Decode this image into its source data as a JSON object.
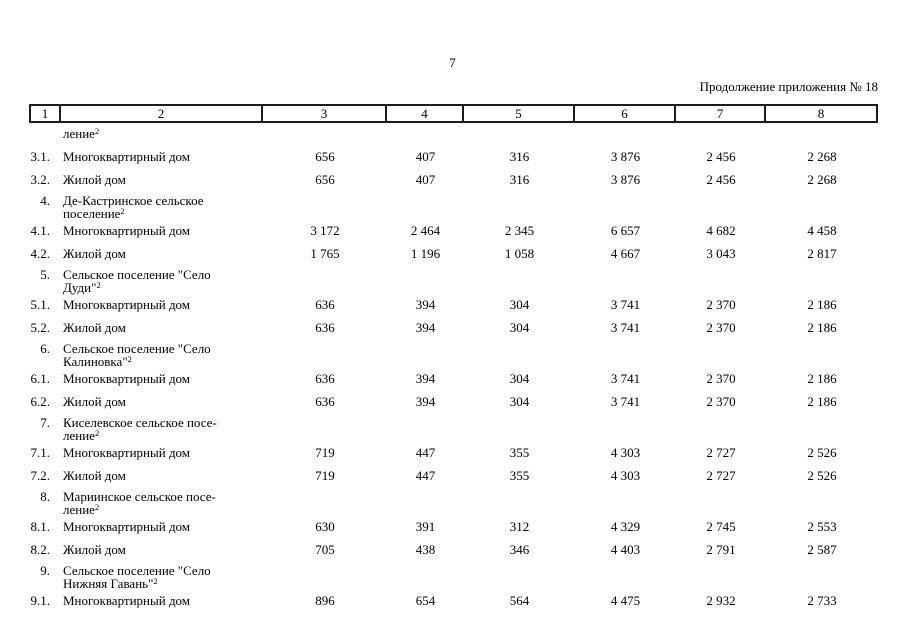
{
  "page": {
    "number": "7",
    "continuation_label": "Продолжение приложения № 18"
  },
  "table": {
    "header_cells": [
      "1",
      "2",
      "3",
      "4",
      "5",
      "6",
      "7",
      "8"
    ],
    "rows": [
      {
        "type": "continuation-row",
        "num": "",
        "lines": [
          "ление"
        ],
        "sup": "2",
        "values": [
          "",
          "",
          "",
          "",
          "",
          ""
        ]
      },
      {
        "type": "item",
        "num": "3.1.",
        "lines": [
          "Многоквартирный дом"
        ],
        "sup": "",
        "values": [
          "656",
          "407",
          "316",
          "3 876",
          "2 456",
          "2 268"
        ]
      },
      {
        "type": "item",
        "num": "3.2.",
        "lines": [
          "Жилой дом"
        ],
        "sup": "",
        "values": [
          "656",
          "407",
          "316",
          "3 876",
          "2 456",
          "2 268"
        ]
      },
      {
        "type": "heading",
        "num": "4.",
        "lines": [
          "Де-Кастринское сельское",
          "поселение"
        ],
        "sup": "2",
        "values": [
          "",
          "",
          "",
          "",
          "",
          ""
        ]
      },
      {
        "type": "item",
        "num": "4.1.",
        "lines": [
          "Многоквартирный дом"
        ],
        "sup": "",
        "values": [
          "3 172",
          "2 464",
          "2 345",
          "6 657",
          "4 682",
          "4 458"
        ]
      },
      {
        "type": "item",
        "num": "4.2.",
        "lines": [
          "Жилой дом"
        ],
        "sup": "",
        "values": [
          "1 765",
          "1 196",
          "1 058",
          "4 667",
          "3 043",
          "2 817"
        ]
      },
      {
        "type": "heading",
        "num": "5.",
        "lines": [
          "Сельское поселение \"Село",
          "Дуди\""
        ],
        "sup": "2",
        "values": [
          "",
          "",
          "",
          "",
          "",
          ""
        ]
      },
      {
        "type": "item",
        "num": "5.1.",
        "lines": [
          "Многоквартирный дом"
        ],
        "sup": "",
        "values": [
          "636",
          "394",
          "304",
          "3 741",
          "2 370",
          "2 186"
        ]
      },
      {
        "type": "item",
        "num": "5.2.",
        "lines": [
          "Жилой дом"
        ],
        "sup": "",
        "values": [
          "636",
          "394",
          "304",
          "3 741",
          "2 370",
          "2 186"
        ]
      },
      {
        "type": "heading",
        "num": "6.",
        "lines": [
          "Сельское поселение \"Село",
          "Калиновка\""
        ],
        "sup": "2",
        "values": [
          "",
          "",
          "",
          "",
          "",
          ""
        ]
      },
      {
        "type": "item",
        "num": "6.1.",
        "lines": [
          "Многоквартирный дом"
        ],
        "sup": "",
        "values": [
          "636",
          "394",
          "304",
          "3 741",
          "2 370",
          "2 186"
        ]
      },
      {
        "type": "item",
        "num": "6.2.",
        "lines": [
          "Жилой дом"
        ],
        "sup": "",
        "values": [
          "636",
          "394",
          "304",
          "3 741",
          "2 370",
          "2 186"
        ]
      },
      {
        "type": "heading",
        "num": "7.",
        "lines": [
          "Киселевское сельское посе-",
          "ление"
        ],
        "sup": "2",
        "values": [
          "",
          "",
          "",
          "",
          "",
          ""
        ]
      },
      {
        "type": "item",
        "num": "7.1.",
        "lines": [
          "Многоквартирный дом"
        ],
        "sup": "",
        "values": [
          "719",
          "447",
          "355",
          "4 303",
          "2 727",
          "2 526"
        ]
      },
      {
        "type": "item",
        "num": "7.2.",
        "lines": [
          "Жилой дом"
        ],
        "sup": "",
        "values": [
          "719",
          "447",
          "355",
          "4 303",
          "2 727",
          "2 526"
        ]
      },
      {
        "type": "heading",
        "num": "8.",
        "lines": [
          "Мариинское сельское посе-",
          "ление"
        ],
        "sup": "2",
        "values": [
          "",
          "",
          "",
          "",
          "",
          ""
        ]
      },
      {
        "type": "item",
        "num": "8.1.",
        "lines": [
          "Многоквартирный дом"
        ],
        "sup": "",
        "values": [
          "630",
          "391",
          "312",
          "4 329",
          "2 745",
          "2 553"
        ]
      },
      {
        "type": "item",
        "num": "8.2.",
        "lines": [
          "Жилой дом"
        ],
        "sup": "",
        "values": [
          "705",
          "438",
          "346",
          "4 403",
          "2 791",
          "2 587"
        ]
      },
      {
        "type": "heading",
        "num": "9.",
        "lines": [
          "Сельское поселение \"Село",
          "Нижняя Гавань\""
        ],
        "sup": "2",
        "values": [
          "",
          "",
          "",
          "",
          "",
          ""
        ]
      },
      {
        "type": "item",
        "num": "9.1.",
        "lines": [
          "Многоквартирный дом"
        ],
        "sup": "",
        "values": [
          "896",
          "654",
          "564",
          "4 475",
          "2 932",
          "2 733"
        ]
      }
    ]
  }
}
